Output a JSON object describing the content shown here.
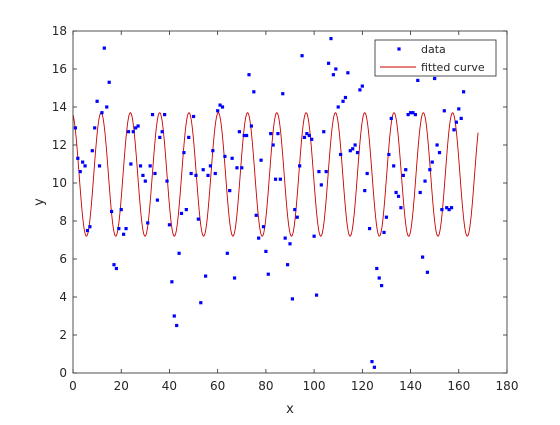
{
  "chart_data": {
    "type": "scatter",
    "title": "",
    "xlabel": "x",
    "ylabel": "y",
    "xlim": [
      0,
      180
    ],
    "ylim": [
      0,
      18
    ],
    "xticks": [
      0,
      20,
      40,
      60,
      80,
      100,
      120,
      140,
      160,
      180
    ],
    "yticks": [
      0,
      2,
      4,
      6,
      8,
      10,
      12,
      14,
      16,
      18
    ],
    "grid": false,
    "legend_position": "top-right",
    "series": [
      {
        "name": "data",
        "style": "markers",
        "color": "#0000ff",
        "points": [
          [
            1,
            12.9
          ],
          [
            2,
            11.3
          ],
          [
            3,
            10.6
          ],
          [
            4,
            11.1
          ],
          [
            5,
            10.9
          ],
          [
            6,
            7.5
          ],
          [
            7,
            7.7
          ],
          [
            8,
            11.7
          ],
          [
            9,
            12.9
          ],
          [
            10,
            14.3
          ],
          [
            11,
            10.9
          ],
          [
            12,
            13.7
          ],
          [
            13,
            17.1
          ],
          [
            14,
            14.0
          ],
          [
            15,
            15.3
          ],
          [
            16,
            8.5
          ],
          [
            17,
            5.7
          ],
          [
            18,
            5.5
          ],
          [
            19,
            7.6
          ],
          [
            20,
            8.6
          ],
          [
            21,
            7.3
          ],
          [
            22,
            7.6
          ],
          [
            23,
            12.7
          ],
          [
            24,
            11.0
          ],
          [
            25,
            12.7
          ],
          [
            26,
            12.9
          ],
          [
            27,
            13.0
          ],
          [
            28,
            10.9
          ],
          [
            29,
            10.4
          ],
          [
            30,
            10.1
          ],
          [
            31,
            7.9
          ],
          [
            32,
            10.9
          ],
          [
            33,
            13.6
          ],
          [
            34,
            10.5
          ],
          [
            35,
            9.1
          ],
          [
            36,
            12.4
          ],
          [
            37,
            12.7
          ],
          [
            38,
            13.6
          ],
          [
            39,
            10.1
          ],
          [
            40,
            7.8
          ],
          [
            41,
            4.8
          ],
          [
            42,
            3.0
          ],
          [
            43,
            2.5
          ],
          [
            44,
            6.3
          ],
          [
            45,
            8.4
          ],
          [
            46,
            11.6
          ],
          [
            47,
            8.6
          ],
          [
            48,
            12.4
          ],
          [
            49,
            10.5
          ],
          [
            50,
            13.5
          ],
          [
            51,
            10.4
          ],
          [
            52,
            8.1
          ],
          [
            53,
            3.7
          ],
          [
            54,
            10.7
          ],
          [
            55,
            5.1
          ],
          [
            56,
            10.4
          ],
          [
            57,
            10.9
          ],
          [
            58,
            11.7
          ],
          [
            59,
            10.5
          ],
          [
            60,
            13.8
          ],
          [
            61,
            14.1
          ],
          [
            62,
            14.0
          ],
          [
            63,
            11.4
          ],
          [
            64,
            6.3
          ],
          [
            65,
            9.6
          ],
          [
            66,
            11.3
          ],
          [
            67,
            5.0
          ],
          [
            68,
            10.8
          ],
          [
            69,
            12.7
          ],
          [
            70,
            10.8
          ],
          [
            71,
            12.5
          ],
          [
            72,
            12.5
          ],
          [
            73,
            15.7
          ],
          [
            74,
            13.0
          ],
          [
            75,
            14.8
          ],
          [
            76,
            8.3
          ],
          [
            77,
            7.1
          ],
          [
            78,
            11.2
          ],
          [
            79,
            7.7
          ],
          [
            80,
            6.4
          ],
          [
            81,
            5.2
          ],
          [
            82,
            12.6
          ],
          [
            83,
            12.0
          ],
          [
            84,
            10.2
          ],
          [
            85,
            12.6
          ],
          [
            86,
            10.2
          ],
          [
            87,
            14.7
          ],
          [
            88,
            7.1
          ],
          [
            89,
            5.7
          ],
          [
            90,
            6.8
          ],
          [
            91,
            3.9
          ],
          [
            92,
            8.6
          ],
          [
            93,
            8.2
          ],
          [
            94,
            10.9
          ],
          [
            95,
            16.7
          ],
          [
            96,
            12.4
          ],
          [
            97,
            12.6
          ],
          [
            98,
            12.5
          ],
          [
            99,
            12.3
          ],
          [
            100,
            7.2
          ],
          [
            101,
            4.1
          ],
          [
            102,
            10.6
          ],
          [
            103,
            9.9
          ],
          [
            104,
            12.7
          ],
          [
            105,
            10.6
          ],
          [
            106,
            16.3
          ],
          [
            107,
            17.6
          ],
          [
            108,
            15.7
          ],
          [
            109,
            16.0
          ],
          [
            110,
            14.0
          ],
          [
            111,
            11.5
          ],
          [
            112,
            14.3
          ],
          [
            113,
            14.5
          ],
          [
            114,
            15.8
          ],
          [
            115,
            11.7
          ],
          [
            116,
            11.8
          ],
          [
            117,
            12.0
          ],
          [
            118,
            11.6
          ],
          [
            119,
            14.9
          ],
          [
            120,
            15.1
          ],
          [
            121,
            9.6
          ],
          [
            122,
            10.5
          ],
          [
            123,
            7.6
          ],
          [
            124,
            0.6
          ],
          [
            125,
            0.3
          ],
          [
            126,
            5.5
          ],
          [
            127,
            5.0
          ],
          [
            128,
            4.6
          ],
          [
            129,
            7.4
          ],
          [
            130,
            8.2
          ],
          [
            131,
            11.5
          ],
          [
            132,
            13.4
          ],
          [
            133,
            10.9
          ],
          [
            134,
            9.5
          ],
          [
            135,
            9.3
          ],
          [
            136,
            8.7
          ],
          [
            137,
            10.4
          ],
          [
            138,
            10.7
          ],
          [
            139,
            13.6
          ],
          [
            140,
            13.7
          ],
          [
            141,
            13.7
          ],
          [
            142,
            13.6
          ],
          [
            143,
            15.4
          ],
          [
            144,
            9.5
          ],
          [
            145,
            6.1
          ],
          [
            146,
            10.1
          ],
          [
            147,
            5.3
          ],
          [
            148,
            10.7
          ],
          [
            149,
            11.1
          ],
          [
            150,
            15.5
          ],
          [
            151,
            12.0
          ],
          [
            152,
            11.6
          ],
          [
            153,
            8.6
          ],
          [
            154,
            13.8
          ],
          [
            155,
            8.7
          ],
          [
            156,
            8.6
          ],
          [
            157,
            8.7
          ],
          [
            158,
            12.8
          ],
          [
            159,
            13.2
          ],
          [
            160,
            13.9
          ],
          [
            161,
            13.4
          ],
          [
            162,
            14.8
          ]
        ]
      },
      {
        "name": "fitted curve",
        "style": "line",
        "color": "#cc0000",
        "model": {
          "offset": 10.45,
          "amplitude": 3.25,
          "period_x": 12.15,
          "phase_rad": 1.83
        }
      }
    ]
  }
}
